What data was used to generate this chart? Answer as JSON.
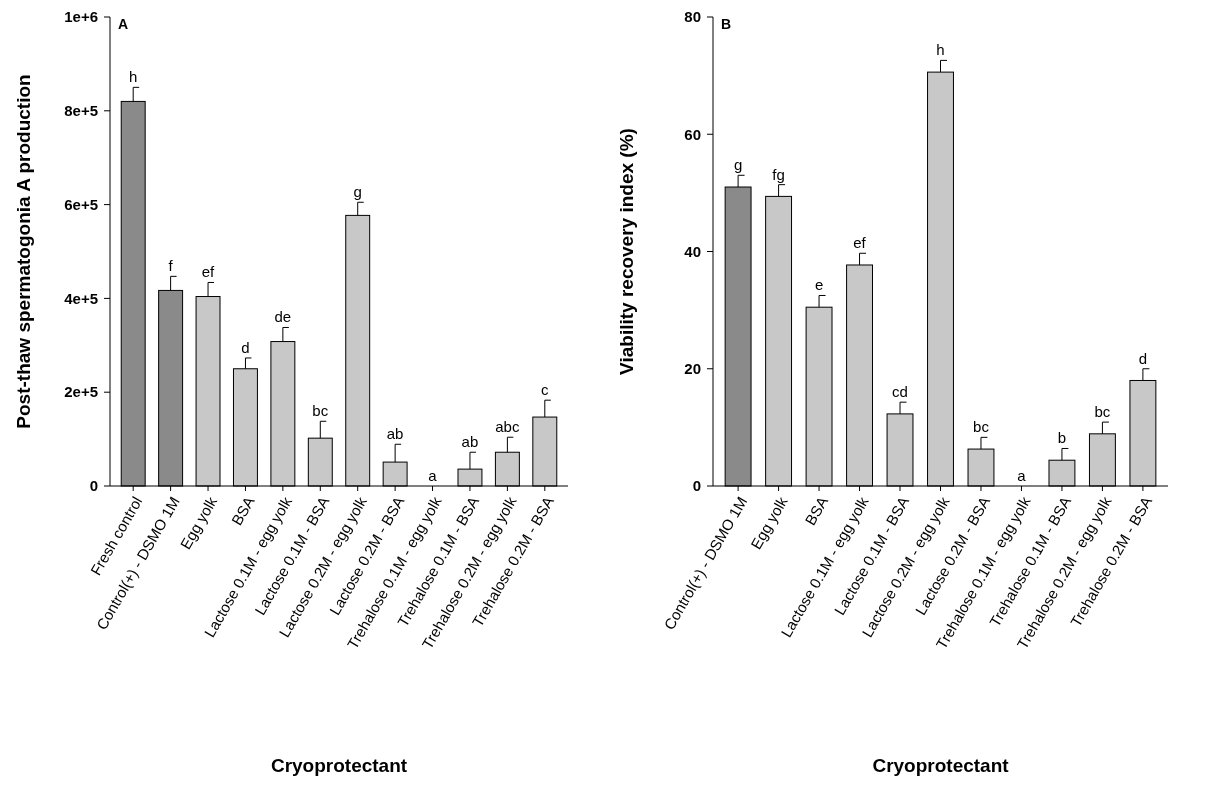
{
  "chart_data": [
    {
      "type": "bar",
      "title": "A",
      "xlabel": "Cryoprotectant",
      "ylabel": "Post-thaw spermatogonia A production",
      "categories": [
        "Fresh control",
        "Control(+) - DSMO 1M",
        "Egg yolk",
        "BSA",
        "Lactose 0.1M - egg yolk",
        "Lactose 0.1M - BSA",
        "Lactose 0.2M - egg yolk",
        "Lactose 0.2M - BSA",
        "Trehalose 0.1M - egg yolk",
        "Trehalose 0.1M - BSA",
        "Trehalose 0.2M - egg yolk",
        "Trehalose 0.2M - BSA"
      ],
      "values": [
        820000,
        417000,
        404000,
        250000,
        308000,
        102000,
        577000,
        51000,
        0,
        36000,
        72000,
        147000
      ],
      "errors": [
        30000,
        30000,
        30000,
        23000,
        30000,
        36000,
        28000,
        38000,
        null,
        36000,
        32000,
        36000
      ],
      "colors": [
        "#8a8a8a",
        "#8a8a8a",
        "#c8c8c8",
        "#c8c8c8",
        "#c8c8c8",
        "#c8c8c8",
        "#c8c8c8",
        "#c8c8c8",
        "#c8c8c8",
        "#c8c8c8",
        "#c8c8c8",
        "#c8c8c8"
      ],
      "ylim": [
        0,
        1000000
      ],
      "yticks": [
        0,
        {
          "value": 200000,
          "label": "2e+5"
        },
        {
          "value": 400000,
          "label": "4e+5"
        },
        {
          "value": 600000,
          "label": "6e+5"
        },
        {
          "value": 800000,
          "label": "8e+5"
        },
        {
          "value": 1000000,
          "label": "1e+6"
        }
      ],
      "grid": false,
      "annotations": [
        {
          "text": "h",
          "x": "Fresh control",
          "y": 850000
        },
        {
          "text": "f",
          "x": "Control(+) - DSMO 1M",
          "y": 447000
        },
        {
          "text": "ef",
          "x": "Egg yolk",
          "y": 434000
        },
        {
          "text": "d",
          "x": "BSA",
          "y": 273000
        },
        {
          "text": "de",
          "x": "Lactose 0.1M - egg yolk",
          "y": 338000
        },
        {
          "text": "bc",
          "x": "Lactose 0.1M - BSA",
          "y": 138000
        },
        {
          "text": "g",
          "x": "Lactose 0.2M - egg yolk",
          "y": 605000
        },
        {
          "text": "ab",
          "x": "Lactose 0.2M - BSA",
          "y": 89000
        },
        {
          "text": "a",
          "x": "Trehalose 0.1M - egg yolk",
          "y": 0
        },
        {
          "text": "ab",
          "x": "Trehalose 0.1M - BSA",
          "y": 72000
        },
        {
          "text": "abc",
          "x": "Trehalose 0.2M - egg yolk",
          "y": 104000
        },
        {
          "text": "c",
          "x": "Trehalose 0.2M - BSA",
          "y": 183000
        }
      ]
    },
    {
      "type": "bar",
      "title": "B",
      "xlabel": "Cryoprotectant",
      "ylabel": "Viability recovery index (%)",
      "categories": [
        "Control(+) - DSMO 1M",
        "Egg yolk",
        "BSA",
        "Lactose 0.1M - egg yolk",
        "Lactose 0.1M - BSA",
        "Lactose 0.2M - egg yolk",
        "Lactose 0.2M - BSA",
        "Trehalose 0.1M - egg yolk",
        "Trehalose 0.1M - BSA",
        "Trehalose 0.2M - egg yolk",
        "Trehalose 0.2M - BSA"
      ],
      "values": [
        51,
        49.4,
        30.5,
        37.7,
        12.3,
        70.6,
        6.3,
        0,
        4.4,
        8.9,
        18
      ],
      "errors": [
        2,
        2,
        2,
        2,
        2,
        2,
        2,
        null,
        2,
        2,
        2
      ],
      "colors": [
        "#8a8a8a",
        "#c8c8c8",
        "#c8c8c8",
        "#c8c8c8",
        "#c8c8c8",
        "#c8c8c8",
        "#c8c8c8",
        "#c8c8c8",
        "#c8c8c8",
        "#c8c8c8",
        "#c8c8c8"
      ],
      "ylim": [
        0,
        80
      ],
      "yticks": [
        0,
        20,
        40,
        60,
        80
      ],
      "grid": false,
      "annotations": [
        {
          "text": "g",
          "x": "Control(+) - DSMO 1M",
          "y": 53
        },
        {
          "text": "fg",
          "x": "Egg yolk",
          "y": 51.4
        },
        {
          "text": "e",
          "x": "BSA",
          "y": 32.5
        },
        {
          "text": "ef",
          "x": "Lactose 0.1M - egg yolk",
          "y": 39.7
        },
        {
          "text": "cd",
          "x": "Lactose 0.1M - BSA",
          "y": 14.3
        },
        {
          "text": "h",
          "x": "Lactose 0.2M - egg yolk",
          "y": 72.6
        },
        {
          "text": "bc",
          "x": "Lactose 0.2M - BSA",
          "y": 8.3
        },
        {
          "text": "a",
          "x": "Trehalose 0.1M - egg yolk",
          "y": 0
        },
        {
          "text": "b",
          "x": "Trehalose 0.1M - BSA",
          "y": 6.4
        },
        {
          "text": "bc",
          "x": "Trehalose 0.2M - egg yolk",
          "y": 10.9
        },
        {
          "text": "d",
          "x": "Trehalose 0.2M - BSA",
          "y": 20
        }
      ]
    }
  ]
}
